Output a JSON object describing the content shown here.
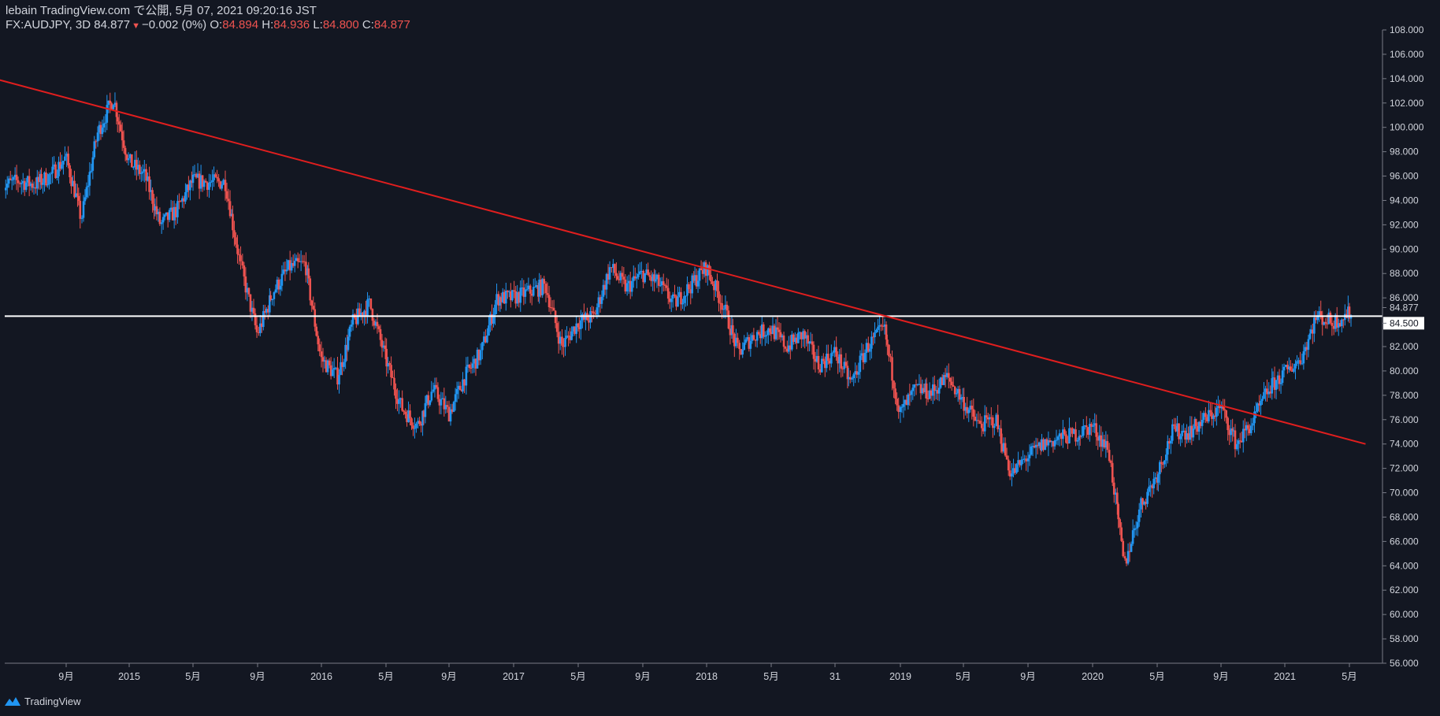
{
  "header": {
    "line1": "lebain TradingView.com で公開, 5月 07, 2021 09:20:16 JST",
    "symbol": "FX:AUDJPY, 3D",
    "price": "84.877",
    "change": "−0.002 (0%)",
    "o_label": "O:",
    "o_value": "84.894",
    "h_label": "H:",
    "h_value": "84.936",
    "l_label": "L:",
    "l_value": "84.800",
    "c_label": "C:",
    "c_value": "84.877"
  },
  "footer": {
    "brand": "TradingView"
  },
  "colors": {
    "background": "#131722",
    "up": "#2196f3",
    "down": "#ef5350",
    "trendline": "#e01e1e",
    "hline": "#ffffff",
    "axis_text": "#d1d4dc"
  },
  "chart_data": {
    "type": "candlestick",
    "symbol": "FX:AUDJPY",
    "interval": "3D",
    "ylim": [
      56,
      108
    ],
    "y_ticks": [
      "108.000",
      "106.000",
      "104.000",
      "102.000",
      "100.000",
      "98.000",
      "96.000",
      "94.000",
      "92.000",
      "90.000",
      "88.000",
      "86.000",
      "84.877",
      "84.500",
      "82.000",
      "80.000",
      "78.000",
      "76.000",
      "74.000",
      "72.000",
      "70.000",
      "68.000",
      "66.000",
      "64.000",
      "62.000",
      "60.000",
      "58.000",
      "56.000"
    ],
    "x_ticks": [
      {
        "label": "9月",
        "date": "2014-09"
      },
      {
        "label": "2015",
        "date": "2015-01"
      },
      {
        "label": "5月",
        "date": "2015-05"
      },
      {
        "label": "9月",
        "date": "2015-09"
      },
      {
        "label": "2016",
        "date": "2016-01"
      },
      {
        "label": "5月",
        "date": "2016-05"
      },
      {
        "label": "9月",
        "date": "2016-09"
      },
      {
        "label": "2017",
        "date": "2017-01"
      },
      {
        "label": "5月",
        "date": "2017-05"
      },
      {
        "label": "9月",
        "date": "2017-09"
      },
      {
        "label": "2018",
        "date": "2018-01"
      },
      {
        "label": "5月",
        "date": "2018-05"
      },
      {
        "label": "31",
        "date": "2018-08-31"
      },
      {
        "label": "2019",
        "date": "2019-01"
      },
      {
        "label": "5月",
        "date": "2019-05"
      },
      {
        "label": "9月",
        "date": "2019-09"
      },
      {
        "label": "2020",
        "date": "2020-01"
      },
      {
        "label": "5月",
        "date": "2020-05"
      },
      {
        "label": "9月",
        "date": "2020-09"
      },
      {
        "label": "2021",
        "date": "2021-01"
      },
      {
        "label": "5月",
        "date": "2021-05"
      }
    ],
    "price_path": [
      [
        "2014-05",
        95.2
      ],
      [
        "2014-06",
        95.6
      ],
      [
        "2014-07",
        95.3
      ],
      [
        "2014-08",
        96.0
      ],
      [
        "2014-09",
        97.5
      ],
      [
        "2014-10",
        92.5
      ],
      [
        "2014-11",
        99.5
      ],
      [
        "2014-12",
        102.4
      ],
      [
        "2015-01",
        97.2
      ],
      [
        "2015-02",
        96.0
      ],
      [
        "2015-03",
        92.0
      ],
      [
        "2015-04",
        93.2
      ],
      [
        "2015-05",
        95.6
      ],
      [
        "2015-06",
        95.5
      ],
      [
        "2015-07",
        95.5
      ],
      [
        "2015-08",
        88.5
      ],
      [
        "2015-09",
        83.0
      ],
      [
        "2015-10",
        86.5
      ],
      [
        "2015-11",
        88.5
      ],
      [
        "2015-12",
        88.8
      ],
      [
        "2016-01",
        81.0
      ],
      [
        "2016-02",
        79.5
      ],
      [
        "2016-03",
        84.0
      ],
      [
        "2016-04",
        85.5
      ],
      [
        "2016-05",
        81.0
      ],
      [
        "2016-06",
        77.0
      ],
      [
        "2016-07",
        75.5
      ],
      [
        "2016-08",
        78.5
      ],
      [
        "2016-09",
        76.5
      ],
      [
        "2016-10",
        79.5
      ],
      [
        "2016-11",
        81.5
      ],
      [
        "2016-12",
        86.0
      ],
      [
        "2017-01",
        86.0
      ],
      [
        "2017-02",
        86.5
      ],
      [
        "2017-03",
        87.0
      ],
      [
        "2017-04",
        82.0
      ],
      [
        "2017-05",
        84.0
      ],
      [
        "2017-06",
        84.5
      ],
      [
        "2017-07",
        88.5
      ],
      [
        "2017-08",
        86.8
      ],
      [
        "2017-09",
        88.0
      ],
      [
        "2017-10",
        87.2
      ],
      [
        "2017-11",
        85.5
      ],
      [
        "2017-12",
        87.0
      ],
      [
        "2018-01",
        88.5
      ],
      [
        "2018-02",
        85.5
      ],
      [
        "2018-03",
        81.5
      ],
      [
        "2018-04",
        83.0
      ],
      [
        "2018-05",
        83.5
      ],
      [
        "2018-06",
        82.0
      ],
      [
        "2018-07",
        83.0
      ],
      [
        "2018-08",
        80.5
      ],
      [
        "2018-09",
        81.5
      ],
      [
        "2018-10",
        79.0
      ],
      [
        "2018-11",
        82.0
      ],
      [
        "2018-12",
        83.5
      ],
      [
        "2019-01",
        76.5
      ],
      [
        "2019-02",
        78.5
      ],
      [
        "2019-03",
        78.2
      ],
      [
        "2019-04",
        79.5
      ],
      [
        "2019-05",
        77.5
      ],
      [
        "2019-06",
        75.5
      ],
      [
        "2019-07",
        76.0
      ],
      [
        "2019-08",
        71.5
      ],
      [
        "2019-09",
        73.0
      ],
      [
        "2019-10",
        74.0
      ],
      [
        "2019-11",
        74.5
      ],
      [
        "2019-12",
        74.8
      ],
      [
        "2020-01",
        75.5
      ],
      [
        "2020-02",
        73.5
      ],
      [
        "2020-03",
        64.0
      ],
      [
        "2020-04",
        69.0
      ],
      [
        "2020-05",
        71.5
      ],
      [
        "2020-06",
        75.0
      ],
      [
        "2020-07",
        75.0
      ],
      [
        "2020-08",
        76.0
      ],
      [
        "2020-09",
        77.0
      ],
      [
        "2020-10",
        74.0
      ],
      [
        "2020-11",
        75.8
      ],
      [
        "2020-12",
        78.5
      ],
      [
        "2021-01",
        79.8
      ],
      [
        "2021-02",
        81.0
      ],
      [
        "2021-03",
        84.5
      ],
      [
        "2021-04",
        84.0
      ],
      [
        "2021-05-07",
        84.877
      ]
    ],
    "horizontal_line": 84.5,
    "current_price": 84.877,
    "trendline": [
      [
        "2014-03",
        104.5
      ],
      [
        "2021-06",
        74.0
      ]
    ]
  }
}
